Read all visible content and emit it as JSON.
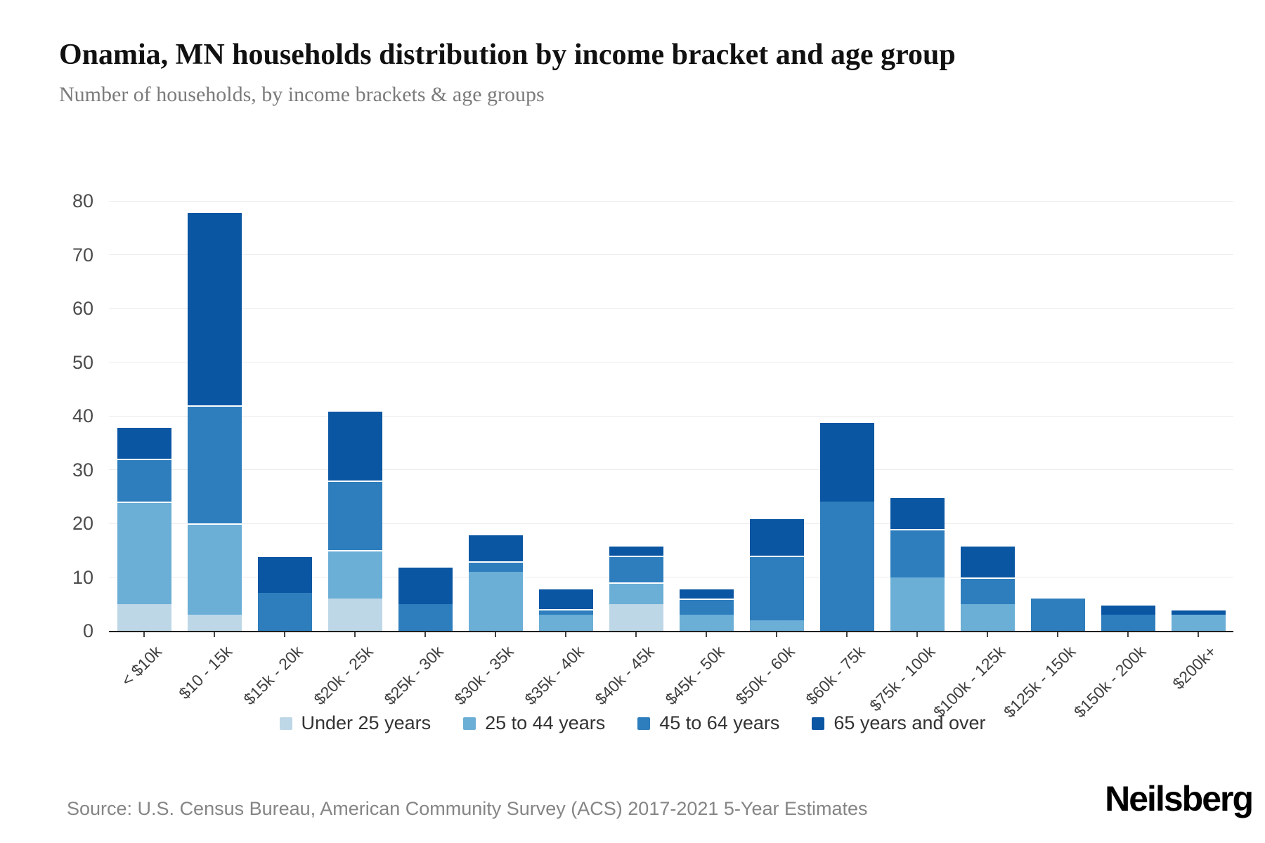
{
  "header": {
    "title": "Onamia, MN households distribution by income bracket and age group",
    "subtitle": "Number of households, by income brackets & age groups"
  },
  "chart_data": {
    "type": "bar",
    "stacked": true,
    "title": "Onamia, MN households distribution by income bracket and age group",
    "xlabel": "",
    "ylabel": "Number of households",
    "ylim": [
      0,
      80
    ],
    "yticks": [
      0,
      10,
      20,
      30,
      40,
      50,
      60,
      70,
      80
    ],
    "grid": true,
    "legend_position": "bottom",
    "categories": [
      "< $10k",
      "$10 - 15k",
      "$15k - 20k",
      "$20k - 25k",
      "$25k - 30k",
      "$30k - 35k",
      "$35k - 40k",
      "$40k - 45k",
      "$45k - 50k",
      "$50k - 60k",
      "$60k - 75k",
      "$75k - 100k",
      "$100k - 125k",
      "$125k - 150k",
      "$150k - 200k",
      "$200k+"
    ],
    "series": [
      {
        "name": "Under 25 years",
        "color": "#bdd7e7",
        "values": [
          5,
          3,
          0,
          6,
          0,
          0,
          0,
          5,
          0,
          0,
          0,
          0,
          0,
          0,
          0,
          0
        ]
      },
      {
        "name": "25 to 44 years",
        "color": "#6baed6",
        "values": [
          19,
          17,
          0,
          9,
          0,
          11,
          3,
          4,
          3,
          2,
          0,
          10,
          5,
          0,
          0,
          3
        ]
      },
      {
        "name": "45 to 64 years",
        "color": "#2e7ebd",
        "values": [
          8,
          22,
          7,
          13,
          5,
          2,
          1,
          5,
          3,
          12,
          24,
          9,
          5,
          6,
          3,
          0
        ]
      },
      {
        "name": "65 years and over",
        "color": "#0b56a3",
        "values": [
          6,
          36,
          7,
          13,
          7,
          5,
          4,
          2,
          2,
          7,
          15,
          6,
          6,
          0,
          2,
          1
        ]
      }
    ],
    "totals": [
      38,
      78,
      14,
      41,
      12,
      18,
      8,
      16,
      8,
      21,
      39,
      25,
      16,
      6,
      5,
      4
    ]
  },
  "footer": {
    "source": "Source: U.S. Census Bureau, American Community Survey (ACS) 2017-2021 5-Year Estimates",
    "brand": "Neilsberg"
  }
}
